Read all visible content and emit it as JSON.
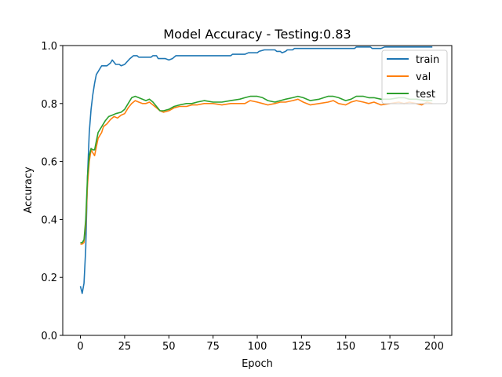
{
  "chart_data": {
    "type": "line",
    "title": "Model Accuracy - Testing:0.83",
    "xlabel": "Epoch",
    "ylabel": "Accuracy",
    "xlim": [
      -10,
      210
    ],
    "ylim": [
      0.0,
      1.0
    ],
    "x_ticks": [
      0,
      25,
      50,
      75,
      100,
      125,
      150,
      175,
      200
    ],
    "y_ticks": [
      0.0,
      0.2,
      0.4,
      0.6,
      0.8,
      1.0
    ],
    "x_tick_labels": [
      "0",
      "25",
      "50",
      "75",
      "100",
      "125",
      "150",
      "175",
      "200"
    ],
    "y_tick_labels": [
      "0.0",
      "0.2",
      "0.4",
      "0.6",
      "0.8",
      "1.0"
    ],
    "grid": false,
    "legend_position": "top-right",
    "series": [
      {
        "name": "train",
        "color": "#1f77b4",
        "points": [
          [
            0,
            0.17
          ],
          [
            1,
            0.145
          ],
          [
            2,
            0.18
          ],
          [
            3,
            0.3
          ],
          [
            4,
            0.55
          ],
          [
            5,
            0.7
          ],
          [
            6,
            0.78
          ],
          [
            7,
            0.83
          ],
          [
            8,
            0.87
          ],
          [
            9,
            0.9
          ],
          [
            10,
            0.91
          ],
          [
            11,
            0.92
          ],
          [
            12,
            0.93
          ],
          [
            15,
            0.93
          ],
          [
            17,
            0.94
          ],
          [
            18,
            0.95
          ],
          [
            20,
            0.935
          ],
          [
            22,
            0.935
          ],
          [
            23,
            0.93
          ],
          [
            25,
            0.935
          ],
          [
            28,
            0.955
          ],
          [
            30,
            0.965
          ],
          [
            32,
            0.965
          ],
          [
            33,
            0.96
          ],
          [
            40,
            0.96
          ],
          [
            41,
            0.965
          ],
          [
            43,
            0.965
          ],
          [
            44,
            0.955
          ],
          [
            48,
            0.955
          ],
          [
            50,
            0.95
          ],
          [
            52,
            0.955
          ],
          [
            54,
            0.965
          ],
          [
            85,
            0.965
          ],
          [
            86,
            0.97
          ],
          [
            93,
            0.97
          ],
          [
            95,
            0.975
          ],
          [
            100,
            0.975
          ],
          [
            101,
            0.98
          ],
          [
            104,
            0.985
          ],
          [
            110,
            0.985
          ],
          [
            111,
            0.98
          ],
          [
            113,
            0.98
          ],
          [
            114,
            0.975
          ],
          [
            116,
            0.98
          ],
          [
            117,
            0.985
          ],
          [
            120,
            0.985
          ],
          [
            121,
            0.99
          ],
          [
            155,
            0.99
          ],
          [
            156,
            0.995
          ],
          [
            164,
            0.995
          ],
          [
            165,
            0.99
          ],
          [
            170,
            0.99
          ],
          [
            172,
            0.995
          ],
          [
            199,
            0.995
          ]
        ]
      },
      {
        "name": "val",
        "color": "#ff7f0e",
        "points": [
          [
            0,
            0.315
          ],
          [
            1,
            0.315
          ],
          [
            2,
            0.32
          ],
          [
            3,
            0.38
          ],
          [
            4,
            0.52
          ],
          [
            5,
            0.6
          ],
          [
            6,
            0.64
          ],
          [
            7,
            0.63
          ],
          [
            8,
            0.62
          ],
          [
            9,
            0.65
          ],
          [
            10,
            0.68
          ],
          [
            12,
            0.7
          ],
          [
            13,
            0.72
          ],
          [
            15,
            0.73
          ],
          [
            17,
            0.745
          ],
          [
            19,
            0.755
          ],
          [
            21,
            0.75
          ],
          [
            23,
            0.76
          ],
          [
            25,
            0.765
          ],
          [
            27,
            0.785
          ],
          [
            29,
            0.8
          ],
          [
            31,
            0.81
          ],
          [
            33,
            0.805
          ],
          [
            35,
            0.8
          ],
          [
            37,
            0.8
          ],
          [
            39,
            0.805
          ],
          [
            41,
            0.795
          ],
          [
            43,
            0.785
          ],
          [
            45,
            0.775
          ],
          [
            47,
            0.77
          ],
          [
            50,
            0.775
          ],
          [
            53,
            0.785
          ],
          [
            56,
            0.79
          ],
          [
            60,
            0.79
          ],
          [
            63,
            0.795
          ],
          [
            66,
            0.795
          ],
          [
            70,
            0.8
          ],
          [
            75,
            0.8
          ],
          [
            80,
            0.795
          ],
          [
            85,
            0.8
          ],
          [
            90,
            0.8
          ],
          [
            93,
            0.8
          ],
          [
            96,
            0.81
          ],
          [
            100,
            0.805
          ],
          [
            103,
            0.8
          ],
          [
            106,
            0.795
          ],
          [
            110,
            0.8
          ],
          [
            113,
            0.805
          ],
          [
            116,
            0.805
          ],
          [
            120,
            0.81
          ],
          [
            123,
            0.815
          ],
          [
            126,
            0.805
          ],
          [
            130,
            0.795
          ],
          [
            135,
            0.8
          ],
          [
            140,
            0.805
          ],
          [
            143,
            0.81
          ],
          [
            146,
            0.8
          ],
          [
            150,
            0.795
          ],
          [
            153,
            0.805
          ],
          [
            156,
            0.81
          ],
          [
            160,
            0.805
          ],
          [
            163,
            0.8
          ],
          [
            166,
            0.805
          ],
          [
            170,
            0.795
          ],
          [
            175,
            0.8
          ],
          [
            180,
            0.805
          ],
          [
            183,
            0.8
          ],
          [
            186,
            0.805
          ],
          [
            190,
            0.8
          ],
          [
            193,
            0.795
          ],
          [
            196,
            0.805
          ],
          [
            199,
            0.8
          ]
        ]
      },
      {
        "name": "test",
        "color": "#2ca02c",
        "points": [
          [
            0,
            0.32
          ],
          [
            1,
            0.32
          ],
          [
            2,
            0.33
          ],
          [
            3,
            0.4
          ],
          [
            4,
            0.55
          ],
          [
            5,
            0.62
          ],
          [
            6,
            0.645
          ],
          [
            7,
            0.64
          ],
          [
            8,
            0.64
          ],
          [
            9,
            0.67
          ],
          [
            10,
            0.7
          ],
          [
            12,
            0.72
          ],
          [
            14,
            0.74
          ],
          [
            16,
            0.755
          ],
          [
            18,
            0.76
          ],
          [
            20,
            0.765
          ],
          [
            23,
            0.77
          ],
          [
            25,
            0.78
          ],
          [
            27,
            0.8
          ],
          [
            29,
            0.82
          ],
          [
            31,
            0.825
          ],
          [
            33,
            0.82
          ],
          [
            35,
            0.815
          ],
          [
            37,
            0.81
          ],
          [
            39,
            0.815
          ],
          [
            41,
            0.805
          ],
          [
            43,
            0.79
          ],
          [
            45,
            0.775
          ],
          [
            47,
            0.775
          ],
          [
            50,
            0.78
          ],
          [
            53,
            0.79
          ],
          [
            56,
            0.795
          ],
          [
            60,
            0.8
          ],
          [
            63,
            0.8
          ],
          [
            66,
            0.805
          ],
          [
            70,
            0.81
          ],
          [
            75,
            0.805
          ],
          [
            80,
            0.805
          ],
          [
            85,
            0.81
          ],
          [
            90,
            0.815
          ],
          [
            93,
            0.82
          ],
          [
            96,
            0.825
          ],
          [
            100,
            0.825
          ],
          [
            103,
            0.82
          ],
          [
            106,
            0.81
          ],
          [
            110,
            0.805
          ],
          [
            113,
            0.81
          ],
          [
            116,
            0.815
          ],
          [
            120,
            0.82
          ],
          [
            123,
            0.825
          ],
          [
            126,
            0.82
          ],
          [
            130,
            0.81
          ],
          [
            135,
            0.815
          ],
          [
            140,
            0.825
          ],
          [
            143,
            0.825
          ],
          [
            146,
            0.82
          ],
          [
            150,
            0.81
          ],
          [
            153,
            0.815
          ],
          [
            156,
            0.825
          ],
          [
            160,
            0.825
          ],
          [
            163,
            0.82
          ],
          [
            166,
            0.82
          ],
          [
            170,
            0.815
          ],
          [
            175,
            0.815
          ],
          [
            180,
            0.82
          ],
          [
            183,
            0.82
          ],
          [
            186,
            0.815
          ],
          [
            190,
            0.815
          ],
          [
            195,
            0.81
          ],
          [
            199,
            0.81
          ]
        ]
      }
    ]
  }
}
